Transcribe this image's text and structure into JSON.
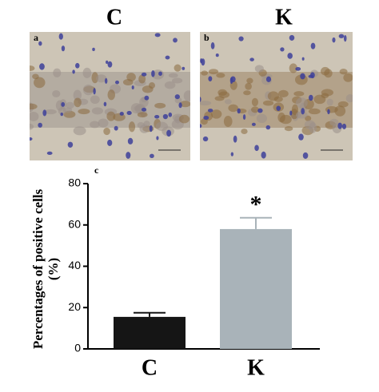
{
  "figure": {
    "column_titles": [
      "C",
      "K"
    ],
    "panel_labels": [
      "a",
      "b"
    ]
  },
  "chart_data": {
    "type": "bar",
    "panel_label": "c",
    "ylabel": "Percentages of positive cells (%)",
    "categories": [
      "C",
      "K"
    ],
    "values": [
      15.5,
      58
    ],
    "errors": [
      2,
      5.5
    ],
    "colors": [
      "#151515",
      "#a9b3b9"
    ],
    "annotations": [
      null,
      "*"
    ],
    "ylim": [
      0,
      80
    ],
    "yticks": [
      0,
      20,
      40,
      60,
      80
    ]
  }
}
